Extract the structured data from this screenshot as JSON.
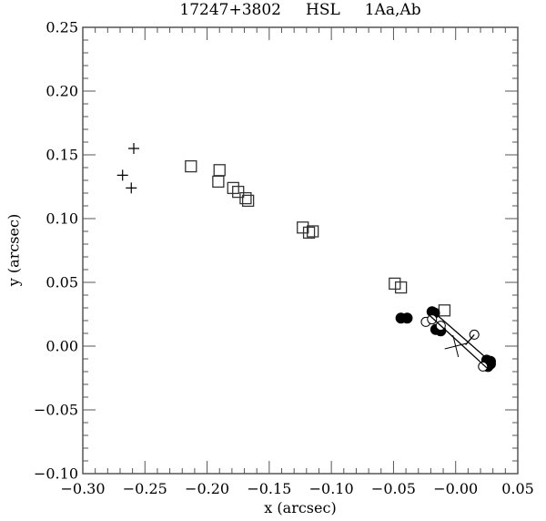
{
  "chart_data": {
    "type": "scatter",
    "title": "17247+3802     HSL     1Aa,Ab",
    "xlabel": "x (arcsec)",
    "ylabel": "y (arcsec)",
    "xlim": [
      -0.3,
      0.05
    ],
    "ylim": [
      -0.1,
      0.25
    ],
    "x_ticks": [
      "-0.30",
      "-0.25",
      "-0.20",
      "-0.15",
      "-0.10",
      "-0.05",
      "-0.00",
      "0.05"
    ],
    "y_ticks": [
      "0.25",
      "0.20",
      "0.15",
      "0.10",
      "0.05",
      "0.00",
      "-0.05",
      "-0.10"
    ],
    "grid": false,
    "series": [
      {
        "name": "plus markers",
        "marker": "plus",
        "points": [
          [
            -0.259,
            0.155
          ],
          [
            -0.268,
            0.134
          ],
          [
            -0.261,
            0.124
          ]
        ]
      },
      {
        "name": "square markers",
        "marker": "square",
        "points": [
          [
            -0.213,
            0.141
          ],
          [
            -0.19,
            0.138
          ],
          [
            -0.191,
            0.129
          ],
          [
            -0.179,
            0.124
          ],
          [
            -0.175,
            0.121
          ],
          [
            -0.169,
            0.116
          ],
          [
            -0.167,
            0.114
          ],
          [
            -0.123,
            0.093
          ],
          [
            -0.118,
            0.089
          ],
          [
            -0.115,
            0.09
          ],
          [
            -0.049,
            0.049
          ],
          [
            -0.044,
            0.046
          ],
          [
            -0.009,
            0.028
          ]
        ]
      },
      {
        "name": "filled circles",
        "marker": "filled-circle",
        "points": [
          [
            -0.044,
            0.022
          ],
          [
            -0.039,
            0.022
          ],
          [
            -0.019,
            0.027
          ],
          [
            -0.017,
            0.026
          ],
          [
            -0.016,
            0.013
          ],
          [
            -0.012,
            0.012
          ],
          [
            0.025,
            -0.011
          ],
          [
            0.028,
            -0.012
          ],
          [
            0.026,
            -0.016
          ],
          [
            0.028,
            -0.014
          ]
        ]
      },
      {
        "name": "open circles",
        "marker": "open-circle",
        "points": [
          [
            -0.024,
            0.019
          ],
          [
            -0.019,
            0.021
          ],
          [
            -0.012,
            0.016
          ],
          [
            0.015,
            0.009
          ],
          [
            0.022,
            -0.016
          ]
        ]
      },
      {
        "name": "orbit segments",
        "marker": "line",
        "segments": [
          [
            [
              -0.022,
              0.025
            ],
            [
              0.025,
              -0.017
            ]
          ],
          [
            [
              -0.018,
              0.027
            ],
            [
              0.029,
              -0.013
            ]
          ],
          [
            [
              0.008,
              0.001
            ],
            [
              0.015,
              0.009
            ]
          ]
        ]
      },
      {
        "name": "primary position",
        "marker": "large-cross",
        "points": [
          [
            0.0,
            0.0
          ]
        ]
      }
    ]
  }
}
